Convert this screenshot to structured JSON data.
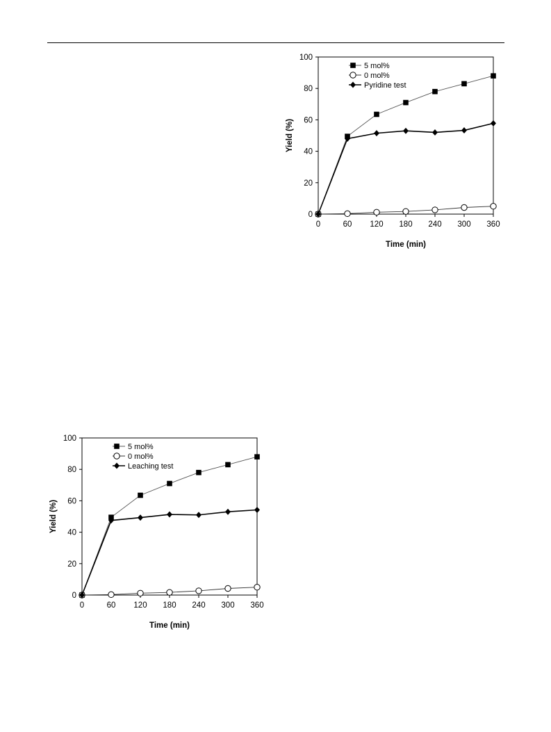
{
  "chart_data": [
    {
      "type": "line",
      "title": "",
      "xlabel": "Time (min)",
      "ylabel": "Yield (%)",
      "xlim": [
        0,
        360
      ],
      "ylim": [
        0,
        100
      ],
      "xticks": [
        0,
        60,
        120,
        180,
        240,
        300,
        360
      ],
      "yticks": [
        0,
        20,
        40,
        60,
        80,
        100
      ],
      "legend_position": "top-left",
      "series": [
        {
          "name": "5 mol%",
          "marker": "filled-square",
          "color": "#555555",
          "x": [
            0,
            60,
            120,
            180,
            240,
            300,
            360
          ],
          "y": [
            0,
            49.5,
            63.5,
            71,
            78,
            83,
            88
          ]
        },
        {
          "name": "0 mol%",
          "marker": "open-circle",
          "color": "#333333",
          "x": [
            0,
            60,
            120,
            180,
            240,
            300,
            360
          ],
          "y": [
            0,
            0.3,
            1.2,
            1.7,
            2.7,
            4.2,
            5
          ]
        },
        {
          "name": "Pyridine test",
          "marker": "filled-diamond",
          "color": "#000000",
          "x": [
            0,
            60,
            120,
            180,
            240,
            300,
            360
          ],
          "y": [
            0,
            48,
            51.5,
            53,
            52,
            53.3,
            57.8
          ]
        }
      ]
    },
    {
      "type": "line",
      "title": "",
      "xlabel": "Time (min)",
      "ylabel": "Yield (%)",
      "xlim": [
        0,
        360
      ],
      "ylim": [
        0,
        100
      ],
      "xticks": [
        0,
        60,
        120,
        180,
        240,
        300,
        360
      ],
      "yticks": [
        0,
        20,
        40,
        60,
        80,
        100
      ],
      "legend_position": "top-left",
      "series": [
        {
          "name": "5 mol%",
          "marker": "filled-square",
          "color": "#555555",
          "x": [
            0,
            60,
            120,
            180,
            240,
            300,
            360
          ],
          "y": [
            0,
            49.5,
            63.5,
            71,
            78,
            83,
            88
          ]
        },
        {
          "name": "0 mol%",
          "marker": "open-circle",
          "color": "#333333",
          "x": [
            0,
            60,
            120,
            180,
            240,
            300,
            360
          ],
          "y": [
            0,
            0.3,
            1.2,
            1.7,
            2.7,
            4.2,
            5
          ]
        },
        {
          "name": "Leaching test",
          "marker": "filled-diamond",
          "color": "#000000",
          "x": [
            0,
            60,
            120,
            180,
            240,
            300,
            360
          ],
          "y": [
            0,
            47.5,
            49.3,
            51.3,
            51,
            53,
            54.2
          ]
        }
      ]
    }
  ]
}
